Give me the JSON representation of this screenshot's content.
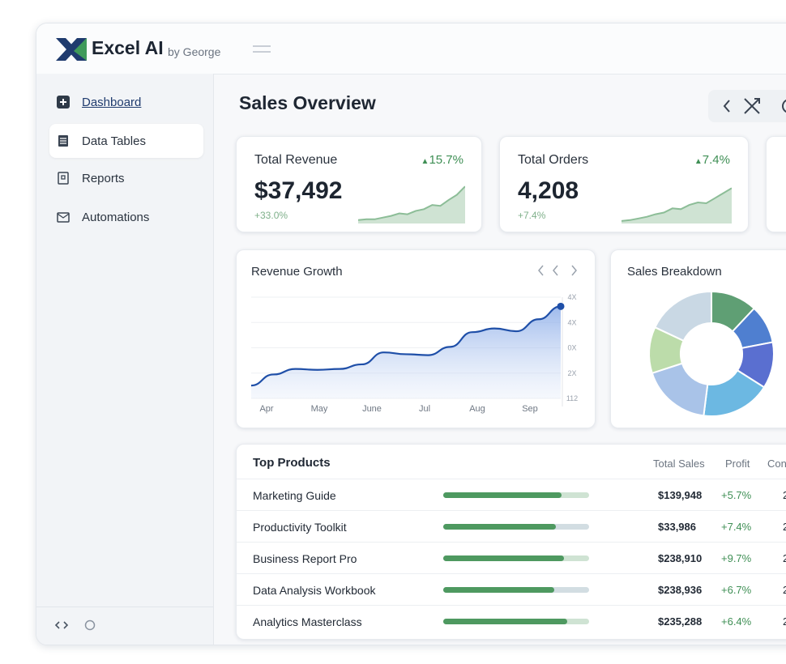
{
  "header": {
    "brand": "Excel AI",
    "byline": "by George"
  },
  "sidebar": {
    "nav": [
      "Dashboard",
      "Data Tables",
      "Reports",
      "Automations"
    ]
  },
  "main": {
    "title": "Sales Overview"
  },
  "kpis": [
    {
      "label": "Total Revenue",
      "change": "15.7%",
      "value": "$37,492",
      "sub": "+33.0%",
      "sparkline": [
        4,
        5,
        5,
        7,
        9,
        12,
        11,
        15,
        17,
        22,
        21,
        28,
        34,
        44
      ],
      "ylim": [
        0,
        50
      ]
    },
    {
      "label": "Total Orders",
      "change": "7.4%",
      "value": "4,208",
      "sub": "+7.4%",
      "sparkline": [
        3,
        4,
        6,
        8,
        11,
        13,
        18,
        17,
        22,
        25,
        24,
        30,
        36,
        42
      ],
      "ylim": [
        0,
        50
      ]
    }
  ],
  "revenue_growth": {
    "type": "line",
    "title": "Revenue Growth",
    "categories": [
      "Apr",
      "May",
      "June",
      "Jul",
      "Aug",
      "Sep"
    ],
    "y_labels": [
      "4X",
      "4X",
      "0X",
      "2X",
      "112"
    ],
    "values": [
      14,
      26,
      32,
      31,
      32,
      37,
      50,
      48,
      47,
      56,
      72,
      76,
      73,
      86,
      100
    ],
    "ylim": [
      0,
      110
    ],
    "color": "#1f4fa8"
  },
  "sales_breakdown": {
    "type": "pie",
    "title": "Sales Breakdown",
    "values": [
      12,
      10,
      12,
      18,
      18,
      12,
      18
    ],
    "colors": [
      "#5f9f74",
      "#4f7fd0",
      "#5a6fd0",
      "#6cb8e2",
      "#a9c3e8",
      "#bcdcaa",
      "#c9d8e4"
    ]
  },
  "table": {
    "title": "Top Products",
    "columns": [
      "Total Sales",
      "Profit",
      "Con"
    ],
    "progress_lim": [
      0,
      100
    ],
    "rows": [
      {
        "name": "Marketing Guide",
        "progress": 81,
        "sales": "$139,948",
        "profit": "+5.7%",
        "con": "2"
      },
      {
        "name": "Productivity Toolkit",
        "progress": 77,
        "sales": "$33,986",
        "profit": "+7.4%",
        "con": "2"
      },
      {
        "name": "Business Report Pro",
        "progress": 83,
        "sales": "$238,910",
        "profit": "+9.7%",
        "con": "2"
      },
      {
        "name": "Data Analysis Workbook",
        "progress": 76,
        "sales": "$238,936",
        "profit": "+6.7%",
        "con": "2"
      },
      {
        "name": "Analytics Masterclass",
        "progress": 85,
        "sales": "$235,288",
        "profit": "+6.4%",
        "con": "2"
      }
    ]
  }
}
